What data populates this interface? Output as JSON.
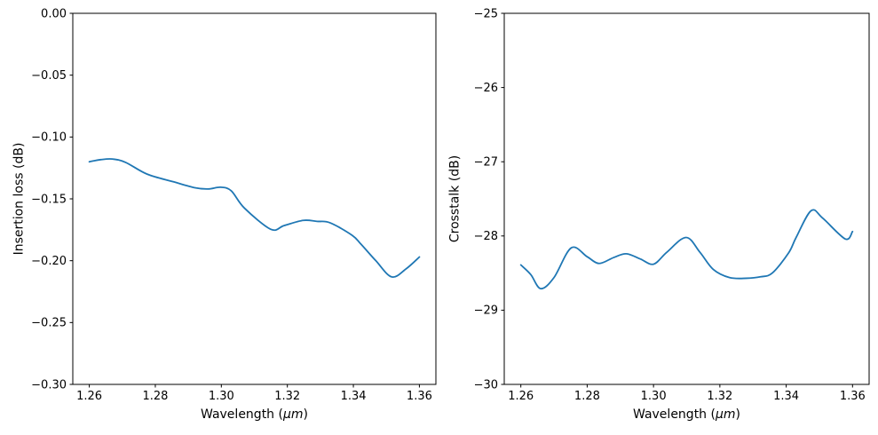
{
  "figure": {
    "background_color": "#ffffff",
    "spine_color": "#000000",
    "accent_line_color": "#1f77b4"
  },
  "chart_data": [
    {
      "type": "line",
      "name": "insertion-loss",
      "xlabel": "Wavelength (μm)",
      "xlabel_parts": {
        "pre": "Wavelength (",
        "italic": "μm",
        "post": ")"
      },
      "ylabel": "Insertion loss (dB)",
      "xlim": [
        1.255,
        1.365
      ],
      "ylim": [
        -0.3,
        0.0
      ],
      "grid": false,
      "legend": "none",
      "line_color": "#1f77b4",
      "line_width": 1.8,
      "x_ticks": [
        {
          "value": 1.26,
          "label": "1.26"
        },
        {
          "value": 1.28,
          "label": "1.28"
        },
        {
          "value": 1.3,
          "label": "1.30"
        },
        {
          "value": 1.32,
          "label": "1.32"
        },
        {
          "value": 1.34,
          "label": "1.34"
        },
        {
          "value": 1.36,
          "label": "1.36"
        }
      ],
      "y_ticks": [
        {
          "value": 0.0,
          "label": "0.00"
        },
        {
          "value": -0.05,
          "label": "−0.05"
        },
        {
          "value": -0.1,
          "label": "−0.10"
        },
        {
          "value": -0.15,
          "label": "−0.15"
        },
        {
          "value": -0.2,
          "label": "−0.20"
        },
        {
          "value": -0.25,
          "label": "−0.25"
        },
        {
          "value": -0.3,
          "label": "−0.30"
        }
      ],
      "series": [
        {
          "name": "insertion-loss",
          "points": [
            [
              1.26,
              -0.12
            ],
            [
              1.2635,
              -0.1183
            ],
            [
              1.267,
              -0.1178
            ],
            [
              1.271,
              -0.1205
            ],
            [
              1.2775,
              -0.13
            ],
            [
              1.2855,
              -0.1362
            ],
            [
              1.292,
              -0.141
            ],
            [
              1.296,
              -0.142
            ],
            [
              1.2998,
              -0.1406
            ],
            [
              1.303,
              -0.1435
            ],
            [
              1.307,
              -0.1575
            ],
            [
              1.315,
              -0.1746
            ],
            [
              1.319,
              -0.1716
            ],
            [
              1.3248,
              -0.1674
            ],
            [
              1.329,
              -0.1682
            ],
            [
              1.333,
              -0.1694
            ],
            [
              1.3396,
              -0.1794
            ],
            [
              1.3423,
              -0.1866
            ],
            [
              1.3468,
              -0.2
            ],
            [
              1.3516,
              -0.2131
            ],
            [
              1.356,
              -0.2065
            ],
            [
              1.36,
              -0.197
            ]
          ]
        }
      ]
    },
    {
      "type": "line",
      "name": "crosstalk",
      "xlabel": "Wavelength (μm)",
      "xlabel_parts": {
        "pre": "Wavelength (",
        "italic": "μm",
        "post": ")"
      },
      "ylabel": "Crosstalk (dB)",
      "xlim": [
        1.255,
        1.365
      ],
      "ylim": [
        -30,
        -25
      ],
      "grid": false,
      "legend": "none",
      "line_color": "#1f77b4",
      "line_width": 1.8,
      "x_ticks": [
        {
          "value": 1.26,
          "label": "1.26"
        },
        {
          "value": 1.28,
          "label": "1.28"
        },
        {
          "value": 1.3,
          "label": "1.30"
        },
        {
          "value": 1.32,
          "label": "1.32"
        },
        {
          "value": 1.34,
          "label": "1.34"
        },
        {
          "value": 1.36,
          "label": "1.36"
        }
      ],
      "y_ticks": [
        {
          "value": -25,
          "label": "−25"
        },
        {
          "value": -26,
          "label": "−26"
        },
        {
          "value": -27,
          "label": "−27"
        },
        {
          "value": -28,
          "label": "−28"
        },
        {
          "value": -29,
          "label": "−29"
        },
        {
          "value": -30,
          "label": "−30"
        }
      ],
      "series": [
        {
          "name": "crosstalk",
          "points": [
            [
              1.26,
              -28.39
            ],
            [
              1.263,
              -28.52
            ],
            [
              1.266,
              -28.71
            ],
            [
              1.27,
              -28.56
            ],
            [
              1.2752,
              -28.16
            ],
            [
              1.28,
              -28.28
            ],
            [
              1.2836,
              -28.37
            ],
            [
              1.288,
              -28.29
            ],
            [
              1.2918,
              -28.24
            ],
            [
              1.296,
              -28.31
            ],
            [
              1.3,
              -28.38
            ],
            [
              1.304,
              -28.22
            ],
            [
              1.3098,
              -28.02
            ],
            [
              1.314,
              -28.22
            ],
            [
              1.318,
              -28.45
            ],
            [
              1.3229,
              -28.56
            ],
            [
              1.328,
              -28.57
            ],
            [
              1.3323,
              -28.55
            ],
            [
              1.3358,
              -28.5
            ],
            [
              1.3407,
              -28.23
            ],
            [
              1.343,
              -28.02
            ],
            [
              1.3475,
              -27.66
            ],
            [
              1.351,
              -27.76
            ],
            [
              1.3578,
              -28.04
            ],
            [
              1.36,
              -27.94
            ]
          ]
        }
      ]
    }
  ]
}
